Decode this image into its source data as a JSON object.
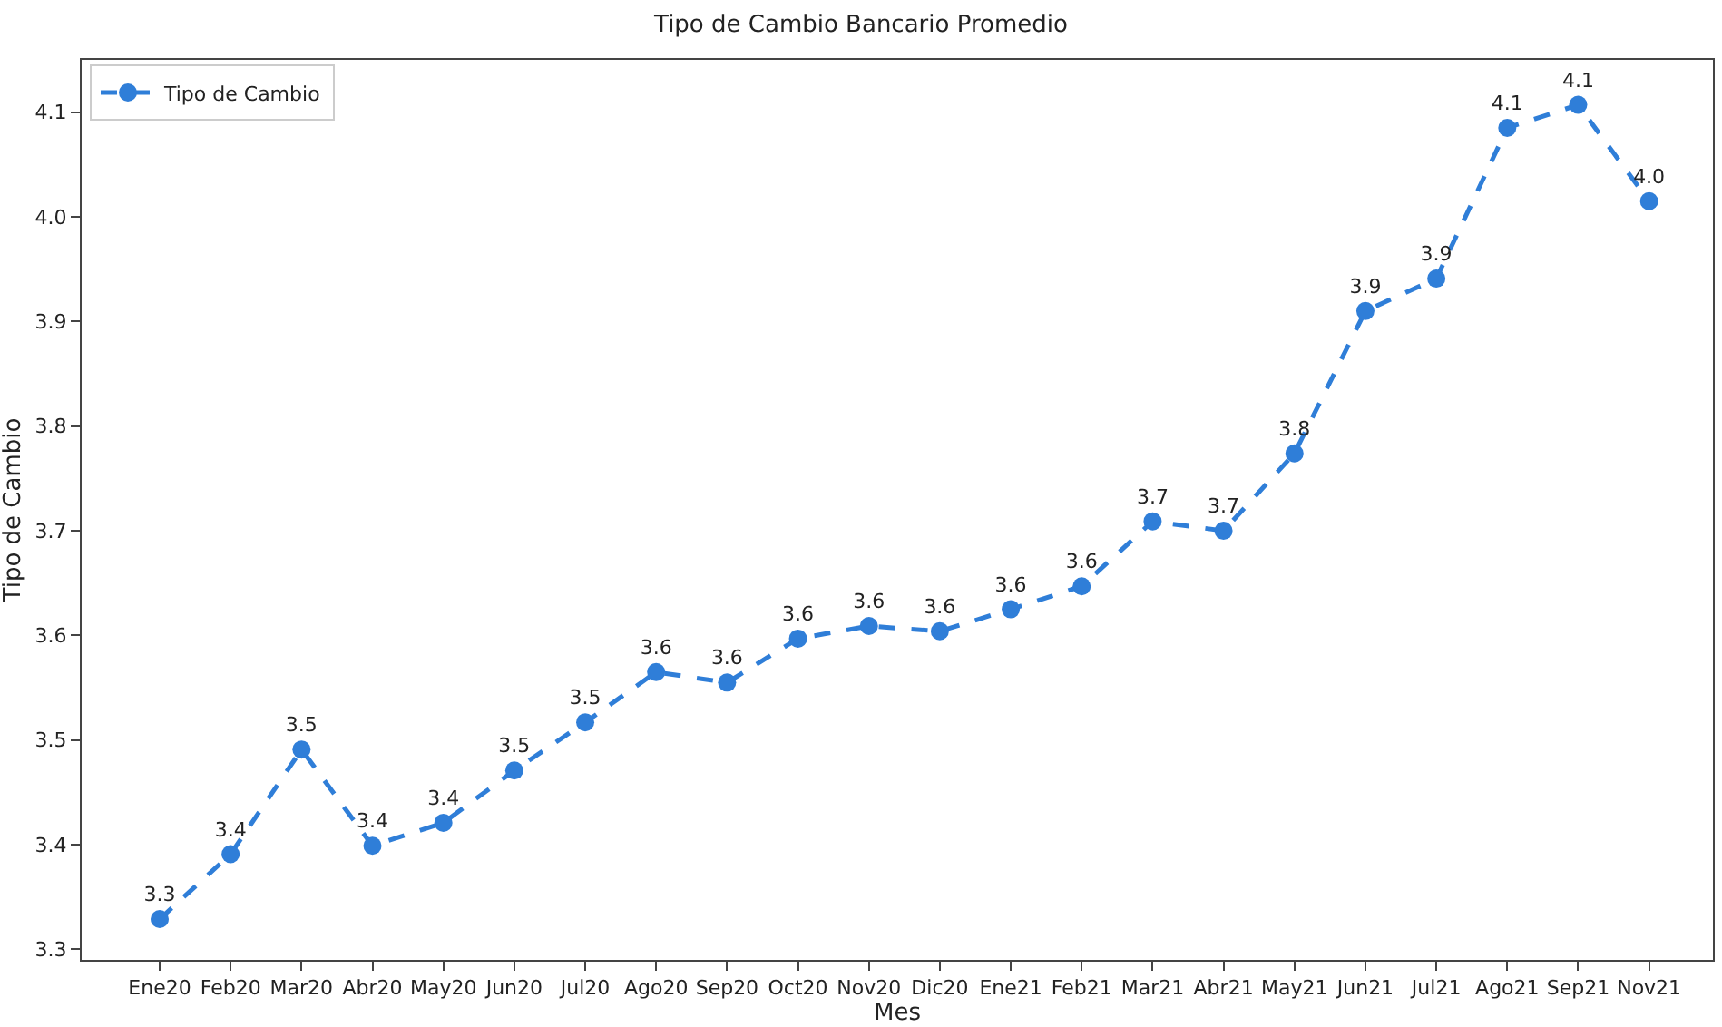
{
  "chart_data": {
    "type": "line",
    "title": "Tipo de Cambio Bancario Promedio",
    "xlabel": "Mes",
    "ylabel": "Tipo de Cambio",
    "categories": [
      "Ene20",
      "Feb20",
      "Mar20",
      "Abr20",
      "May20",
      "Jun20",
      "Jul20",
      "Ago20",
      "Sep20",
      "Oct20",
      "Nov20",
      "Dic20",
      "Ene21",
      "Feb21",
      "Mar21",
      "Abr21",
      "May21",
      "Jun21",
      "Jul21",
      "Ago21",
      "Sep21",
      "Nov21"
    ],
    "series": [
      {
        "name": "Tipo de Cambio",
        "color": "#2f7ed8",
        "values": [
          3.329,
          3.391,
          3.491,
          3.399,
          3.421,
          3.471,
          3.517,
          3.565,
          3.555,
          3.597,
          3.609,
          3.604,
          3.625,
          3.647,
          3.709,
          3.7,
          3.774,
          3.91,
          3.941,
          4.085,
          4.107,
          4.015
        ],
        "value_labels": [
          "3.3",
          "3.4",
          "3.5",
          "3.4",
          "3.4",
          "3.5",
          "3.5",
          "3.6",
          "3.6",
          "3.6",
          "3.6",
          "3.6",
          "3.6",
          "3.6",
          "3.7",
          "3.7",
          "3.8",
          "3.9",
          "3.9",
          "4.1",
          "4.1",
          "4.0"
        ]
      }
    ],
    "ylim": [
      3.29,
      4.15
    ],
    "yticks": [
      3.3,
      3.4,
      3.5,
      3.6,
      3.7,
      3.8,
      3.9,
      {
        "value": 4.0,
        "label": "4.0"
      },
      4.1
    ],
    "marker": "circle",
    "line_style": "dashed",
    "legend": "top left"
  }
}
